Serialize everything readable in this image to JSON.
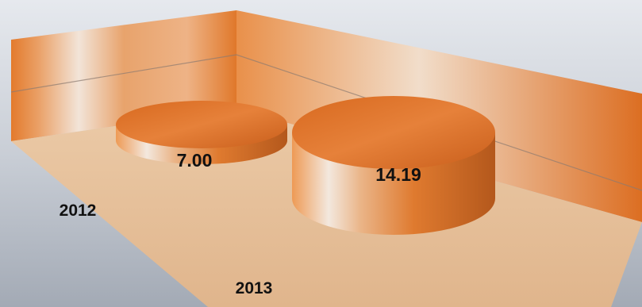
{
  "chart_data": {
    "type": "bar",
    "style": "3d-cylinder",
    "categories": [
      "2012",
      "2013"
    ],
    "values": [
      7.0,
      14.19
    ],
    "data_labels": [
      "7.00",
      "14.19"
    ],
    "title": "",
    "xlabel": "",
    "ylabel": "",
    "legend": "none",
    "grid": true
  },
  "colors": {
    "background_light": "#e3e6ec",
    "background_dark": "#9fa6b1",
    "bar": "#e07a2c",
    "bar_dark": "#a8521a",
    "wall": "#e48438",
    "floor": "#e8c39e"
  }
}
